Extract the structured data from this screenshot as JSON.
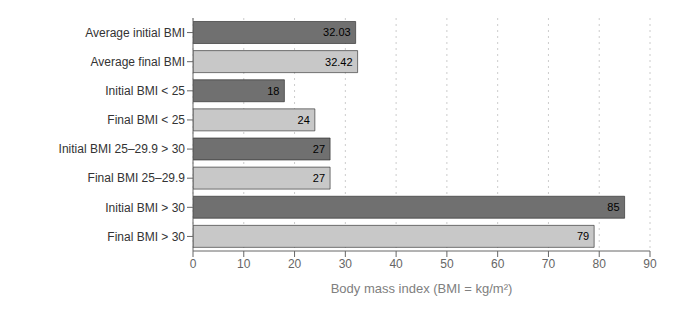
{
  "chart_data": {
    "type": "bar",
    "orientation": "horizontal",
    "categories": [
      "Average initial BMI",
      "Average final BMI",
      "Initial BMI < 25",
      "Final BMI < 25",
      "Initial BMI 25–29.9 > 30",
      "Final BMI 25–29.9",
      "Initial BMI > 30",
      "Final BMI > 30"
    ],
    "values": [
      32.03,
      32.42,
      18,
      24,
      27,
      27,
      85,
      79
    ],
    "colors": [
      "#707070",
      "#c8c8c8",
      "#707070",
      "#c8c8c8",
      "#707070",
      "#c8c8c8",
      "#707070",
      "#c8c8c8"
    ],
    "xlabel": "Body mass index (BMI = kg/m²)",
    "xlim": [
      0,
      90
    ],
    "xticks": [
      0,
      10,
      20,
      30,
      40,
      50,
      60,
      70,
      80,
      90
    ],
    "grid": true,
    "data_labels": true
  }
}
